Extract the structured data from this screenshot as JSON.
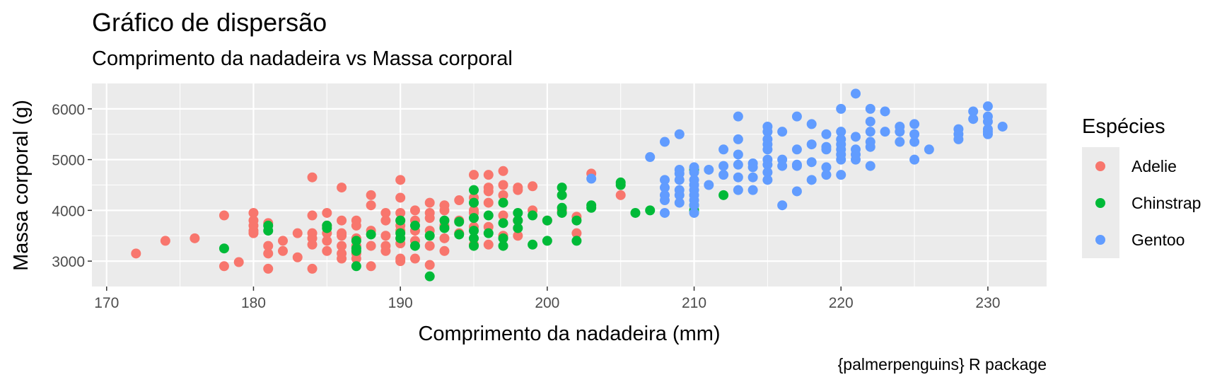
{
  "chart_data": {
    "type": "scatter",
    "title": "Gráfico de dispersão",
    "subtitle": "Comprimento da nadadeira vs Massa corporal",
    "xlabel": "Comprimento da nadadeira (mm)",
    "ylabel": "Massa corporal (g)",
    "caption": "{palmerpenguins} R package",
    "xlim": [
      169,
      234
    ],
    "ylim": [
      2500,
      6500
    ],
    "x_ticks": [
      170,
      180,
      190,
      200,
      210,
      220,
      230
    ],
    "y_ticks": [
      3000,
      4000,
      5000,
      6000
    ],
    "grid": true,
    "legend_title": "Espécies",
    "legend_position": "right",
    "series": [
      {
        "name": "Adelie",
        "color": "#F8766D",
        "points": [
          [
            172,
            3150
          ],
          [
            174,
            3400
          ],
          [
            176,
            3450
          ],
          [
            178,
            3900
          ],
          [
            178,
            2900
          ],
          [
            179,
            2980
          ],
          [
            180,
            3950
          ],
          [
            180,
            3800
          ],
          [
            180,
            3700
          ],
          [
            180,
            3600
          ],
          [
            180,
            3550
          ],
          [
            181,
            3750
          ],
          [
            181,
            3300
          ],
          [
            181,
            3150
          ],
          [
            181,
            2850
          ],
          [
            182,
            3200
          ],
          [
            182,
            3400
          ],
          [
            183,
            3550
          ],
          [
            183,
            3075
          ],
          [
            184,
            4650
          ],
          [
            184,
            3900
          ],
          [
            184,
            3550
          ],
          [
            184,
            3450
          ],
          [
            184,
            3325
          ],
          [
            184,
            2850
          ],
          [
            185,
            3950
          ],
          [
            185,
            3700
          ],
          [
            185,
            3550
          ],
          [
            185,
            3400
          ],
          [
            185,
            3200
          ],
          [
            186,
            4450
          ],
          [
            186,
            3800
          ],
          [
            186,
            3550
          ],
          [
            186,
            3500
          ],
          [
            186,
            3300
          ],
          [
            186,
            3150
          ],
          [
            186,
            3050
          ],
          [
            187,
            3800
          ],
          [
            187,
            3700
          ],
          [
            187,
            3450
          ],
          [
            187,
            3300
          ],
          [
            187,
            3150
          ],
          [
            187,
            3050
          ],
          [
            188,
            4300
          ],
          [
            188,
            4100
          ],
          [
            188,
            3600
          ],
          [
            188,
            3300
          ],
          [
            188,
            2900
          ],
          [
            189,
            3950
          ],
          [
            189,
            3800
          ],
          [
            189,
            3500
          ],
          [
            189,
            3300
          ],
          [
            189,
            3200
          ],
          [
            190,
            4600
          ],
          [
            190,
            4250
          ],
          [
            190,
            3950
          ],
          [
            190,
            3800
          ],
          [
            190,
            3700
          ],
          [
            190,
            3600
          ],
          [
            190,
            3450
          ],
          [
            190,
            3350
          ],
          [
            190,
            3050
          ],
          [
            190,
            3000
          ],
          [
            191,
            4000
          ],
          [
            191,
            3800
          ],
          [
            191,
            3600
          ],
          [
            191,
            3400
          ],
          [
            191,
            3050
          ],
          [
            192,
            4150
          ],
          [
            192,
            3950
          ],
          [
            192,
            3850
          ],
          [
            192,
            3600
          ],
          [
            192,
            3300
          ],
          [
            192,
            2925
          ],
          [
            193,
            4100
          ],
          [
            193,
            4000
          ],
          [
            193,
            3700
          ],
          [
            193,
            3450
          ],
          [
            193,
            3200
          ],
          [
            194,
            4200
          ],
          [
            194,
            3800
          ],
          [
            194,
            3550
          ],
          [
            195,
            4700
          ],
          [
            195,
            4250
          ],
          [
            195,
            4000
          ],
          [
            195,
            3950
          ],
          [
            195,
            3675
          ],
          [
            195,
            3325
          ],
          [
            196,
            4700
          ],
          [
            196,
            4450
          ],
          [
            196,
            4375
          ],
          [
            196,
            4150
          ],
          [
            196,
            3675
          ],
          [
            196,
            3325
          ],
          [
            197,
            4775
          ],
          [
            197,
            4500
          ],
          [
            197,
            4300
          ],
          [
            197,
            3900
          ],
          [
            197,
            3500
          ],
          [
            198,
            4450
          ],
          [
            198,
            4400
          ],
          [
            198,
            3800
          ],
          [
            198,
            3500
          ],
          [
            199,
            4475
          ],
          [
            199,
            4000
          ],
          [
            200,
            3800
          ],
          [
            201,
            4000
          ],
          [
            202,
            3875
          ],
          [
            202,
            3550
          ],
          [
            203,
            4725
          ],
          [
            205,
            4300
          ]
        ]
      },
      {
        "name": "Chinstrap",
        "color": "#00BA38",
        "points": [
          [
            178,
            3250
          ],
          [
            181,
            3700
          ],
          [
            181,
            3600
          ],
          [
            185,
            3700
          ],
          [
            185,
            3650
          ],
          [
            187,
            3400
          ],
          [
            187,
            3250
          ],
          [
            187,
            3200
          ],
          [
            187,
            2900
          ],
          [
            188,
            3525
          ],
          [
            190,
            3800
          ],
          [
            190,
            3550
          ],
          [
            190,
            3450
          ],
          [
            191,
            3700
          ],
          [
            191,
            3300
          ],
          [
            192,
            3500
          ],
          [
            192,
            2700
          ],
          [
            193,
            3800
          ],
          [
            193,
            3650
          ],
          [
            194,
            3775
          ],
          [
            194,
            3525
          ],
          [
            195,
            4400
          ],
          [
            195,
            4150
          ],
          [
            195,
            3850
          ],
          [
            195,
            3600
          ],
          [
            195,
            3450
          ],
          [
            195,
            3300
          ],
          [
            196,
            3900
          ],
          [
            196,
            3550
          ],
          [
            197,
            4150
          ],
          [
            197,
            3750
          ],
          [
            197,
            3450
          ],
          [
            197,
            3300
          ],
          [
            198,
            3950
          ],
          [
            198,
            3800
          ],
          [
            198,
            3650
          ],
          [
            199,
            3900
          ],
          [
            199,
            3325
          ],
          [
            200,
            3800
          ],
          [
            200,
            3400
          ],
          [
            201,
            4450
          ],
          [
            201,
            4300
          ],
          [
            201,
            4050
          ],
          [
            201,
            3950
          ],
          [
            202,
            3800
          ],
          [
            202,
            3400
          ],
          [
            203,
            4100
          ],
          [
            203,
            4050
          ],
          [
            205,
            4550
          ],
          [
            205,
            4500
          ],
          [
            206,
            3950
          ],
          [
            207,
            4000
          ],
          [
            210,
            4800
          ],
          [
            210,
            4100
          ],
          [
            210,
            4000
          ],
          [
            212,
            4300
          ]
        ]
      },
      {
        "name": "Gentoo",
        "color": "#619CFF",
        "points": [
          [
            203,
            4625
          ],
          [
            207,
            5050
          ],
          [
            208,
            5350
          ],
          [
            208,
            4600
          ],
          [
            208,
            4450
          ],
          [
            208,
            4300
          ],
          [
            208,
            4200
          ],
          [
            208,
            3950
          ],
          [
            209,
            5500
          ],
          [
            209,
            4800
          ],
          [
            209,
            4725
          ],
          [
            209,
            4600
          ],
          [
            209,
            4400
          ],
          [
            209,
            4300
          ],
          [
            209,
            4150
          ],
          [
            210,
            4850
          ],
          [
            210,
            4750
          ],
          [
            210,
            4600
          ],
          [
            210,
            4500
          ],
          [
            210,
            4400
          ],
          [
            210,
            4300
          ],
          [
            210,
            4200
          ],
          [
            210,
            4100
          ],
          [
            210,
            3950
          ],
          [
            211,
            4800
          ],
          [
            211,
            4500
          ],
          [
            212,
            5200
          ],
          [
            212,
            4875
          ],
          [
            212,
            4700
          ],
          [
            213,
            5850
          ],
          [
            213,
            5400
          ],
          [
            213,
            5100
          ],
          [
            213,
            4900
          ],
          [
            213,
            4650
          ],
          [
            213,
            4400
          ],
          [
            214,
            4925
          ],
          [
            214,
            4850
          ],
          [
            214,
            4650
          ],
          [
            214,
            4400
          ],
          [
            215,
            5650
          ],
          [
            215,
            5550
          ],
          [
            215,
            5400
          ],
          [
            215,
            5300
          ],
          [
            215,
            5200
          ],
          [
            215,
            5000
          ],
          [
            215,
            4900
          ],
          [
            215,
            4750
          ],
          [
            215,
            4600
          ],
          [
            216,
            5550
          ],
          [
            216,
            5000
          ],
          [
            216,
            4875
          ],
          [
            216,
            4100
          ],
          [
            217,
            5850
          ],
          [
            217,
            5200
          ],
          [
            217,
            4900
          ],
          [
            217,
            4875
          ],
          [
            217,
            4375
          ],
          [
            218,
            5700
          ],
          [
            218,
            5300
          ],
          [
            218,
            4950
          ],
          [
            218,
            4600
          ],
          [
            219,
            5500
          ],
          [
            219,
            5250
          ],
          [
            219,
            5200
          ],
          [
            219,
            4850
          ],
          [
            219,
            4700
          ],
          [
            220,
            6000
          ],
          [
            220,
            5550
          ],
          [
            220,
            5400
          ],
          [
            220,
            5300
          ],
          [
            220,
            5200
          ],
          [
            220,
            5100
          ],
          [
            220,
            5000
          ],
          [
            220,
            4700
          ],
          [
            221,
            6300
          ],
          [
            221,
            5450
          ],
          [
            221,
            5200
          ],
          [
            221,
            5100
          ],
          [
            221,
            5000
          ],
          [
            222,
            6000
          ],
          [
            222,
            5750
          ],
          [
            222,
            5550
          ],
          [
            222,
            5350
          ],
          [
            222,
            5250
          ],
          [
            222,
            4875
          ],
          [
            223,
            5950
          ],
          [
            223,
            5550
          ],
          [
            224,
            5650
          ],
          [
            224,
            5550
          ],
          [
            224,
            5350
          ],
          [
            225,
            5700
          ],
          [
            225,
            5500
          ],
          [
            225,
            5350
          ],
          [
            225,
            5000
          ],
          [
            226,
            5200
          ],
          [
            228,
            5600
          ],
          [
            228,
            5500
          ],
          [
            228,
            5400
          ],
          [
            229,
            5950
          ],
          [
            229,
            5800
          ],
          [
            230,
            6050
          ],
          [
            230,
            5850
          ],
          [
            230,
            5750
          ],
          [
            230,
            5600
          ],
          [
            230,
            5550
          ],
          [
            230,
            5500
          ],
          [
            231,
            5650
          ]
        ]
      }
    ]
  }
}
